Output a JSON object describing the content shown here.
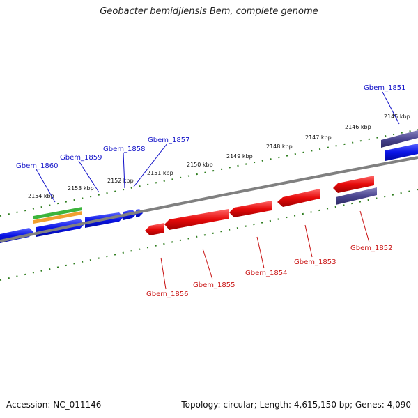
{
  "title": "Geobacter bemidjiensis Bem, complete genome",
  "footer": {
    "accession": "Accession: NC_011146",
    "summary": "Topology: circular; Length: 4,615,150 bp; Genes: 4,090"
  },
  "colors": {
    "forward_gene": "#0a14e6",
    "reverse_gene": "#e60a0a",
    "rna_feature": "#4b4690",
    "backbone": "#808080",
    "ticks": "#2e7d1e",
    "label_forward": "#1010c8",
    "label_reverse": "#c81010",
    "track_green": "#3cb43c",
    "track_orange": "#f0a030"
  },
  "scale": {
    "kbp_labels": [
      "2145 kbp",
      "2146 kbp",
      "2147 kbp",
      "2148 kbp",
      "2149 kbp",
      "2150 kbp",
      "2151 kbp",
      "2152 kbp",
      "2153 kbp",
      "2154 kbp"
    ]
  },
  "genes": {
    "forward": [
      "Gbem_1851",
      "Gbem_1857",
      "Gbem_1858",
      "Gbem_1859",
      "Gbem_1860"
    ],
    "reverse": [
      "Gbem_1852",
      "Gbem_1853",
      "Gbem_1854",
      "Gbem_1855",
      "Gbem_1856"
    ]
  }
}
